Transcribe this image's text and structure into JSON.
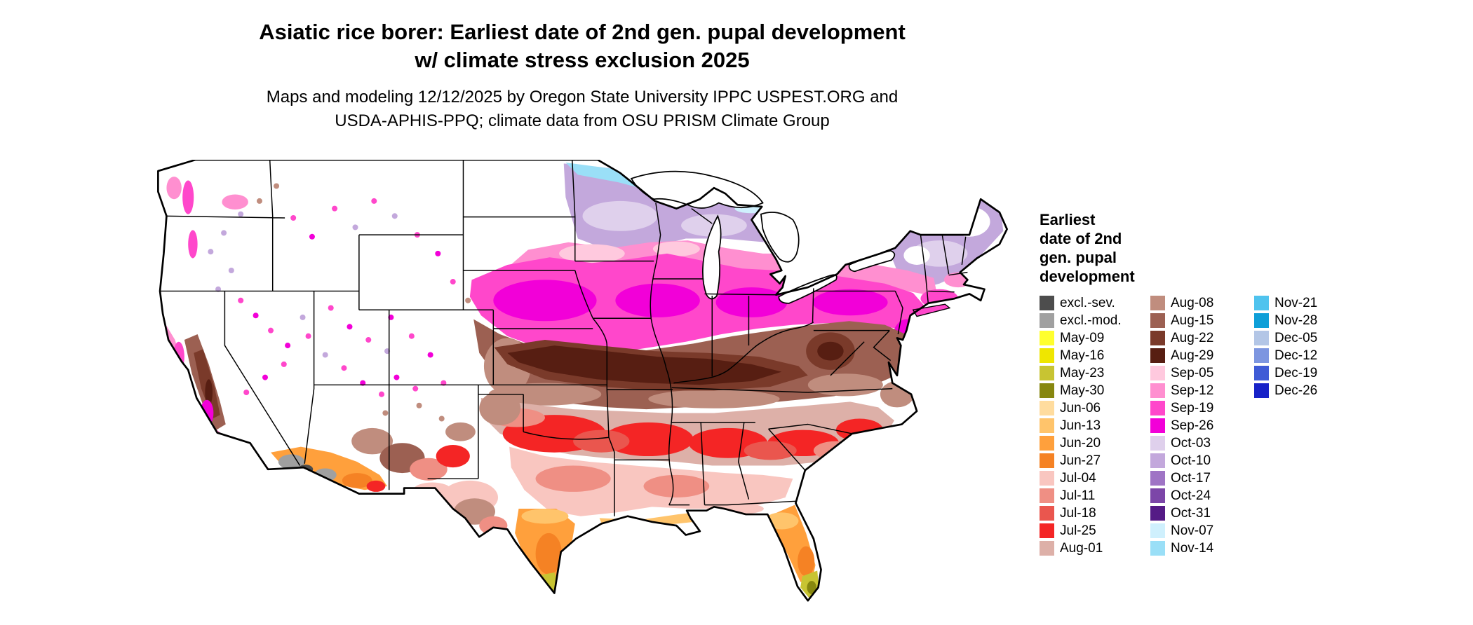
{
  "header": {
    "title_line1": "Asiatic rice borer: Earliest date of 2nd gen. pupal development",
    "title_line2": "w/ climate stress exclusion 2025",
    "subtitle_line1": "Maps and modeling 12/12/2025 by Oregon State University IPPC USPEST.ORG and",
    "subtitle_line2": "USDA-APHIS-PPQ; climate data from OSU PRISM Climate Group"
  },
  "legend": {
    "title_lines": [
      "Earliest",
      "date of 2nd",
      "gen. pupal",
      "development"
    ],
    "columns": [
      {
        "entries": [
          {
            "label": "excl.-sev.",
            "color": "#4D4D4D"
          },
          {
            "label": "excl.-mod.",
            "color": "#A0A0A0"
          },
          {
            "label": "May-09",
            "color": "#FFFF2E"
          },
          {
            "label": "May-16",
            "color": "#EFE600"
          },
          {
            "label": "May-23",
            "color": "#C8C432"
          },
          {
            "label": "May-30",
            "color": "#87870F"
          },
          {
            "label": "Jun-06",
            "color": "#FFDC9E"
          },
          {
            "label": "Jun-13",
            "color": "#FFC46B"
          },
          {
            "label": "Jun-20",
            "color": "#FFA03C"
          },
          {
            "label": "Jun-27",
            "color": "#F58224"
          },
          {
            "label": "Jul-04",
            "color": "#F9C6C0"
          },
          {
            "label": "Jul-11",
            "color": "#EF8F84"
          },
          {
            "label": "Jul-18",
            "color": "#EA564E"
          },
          {
            "label": "Jul-25",
            "color": "#F42525"
          },
          {
            "label": "Aug-01",
            "color": "#DDB0A8"
          }
        ]
      },
      {
        "entries": [
          {
            "label": "Aug-08",
            "color": "#C08D7E"
          },
          {
            "label": "Aug-15",
            "color": "#9C6052"
          },
          {
            "label": "Aug-22",
            "color": "#7A3A2A"
          },
          {
            "label": "Aug-29",
            "color": "#571E12"
          },
          {
            "label": "Sep-05",
            "color": "#FFC9DE"
          },
          {
            "label": "Sep-12",
            "color": "#FF8FD0"
          },
          {
            "label": "Sep-19",
            "color": "#FF47CB"
          },
          {
            "label": "Sep-26",
            "color": "#F200D8"
          },
          {
            "label": "Oct-03",
            "color": "#DFD0EC"
          },
          {
            "label": "Oct-10",
            "color": "#C3A8DC"
          },
          {
            "label": "Oct-17",
            "color": "#9F74C5"
          },
          {
            "label": "Oct-24",
            "color": "#7C46A8"
          },
          {
            "label": "Oct-31",
            "color": "#551B86"
          },
          {
            "label": "Nov-07",
            "color": "#CFF0FD"
          },
          {
            "label": "Nov-14",
            "color": "#9ADFF7"
          }
        ]
      },
      {
        "entries": [
          {
            "label": "Nov-21",
            "color": "#4FC3EE"
          },
          {
            "label": "Nov-28",
            "color": "#0E9FD8"
          },
          {
            "label": "Dec-05",
            "color": "#B3C6E6"
          },
          {
            "label": "Dec-12",
            "color": "#7D96E0"
          },
          {
            "label": "Dec-19",
            "color": "#3F5BD6"
          },
          {
            "label": "Dec-26",
            "color": "#1722C8"
          }
        ]
      }
    ]
  }
}
